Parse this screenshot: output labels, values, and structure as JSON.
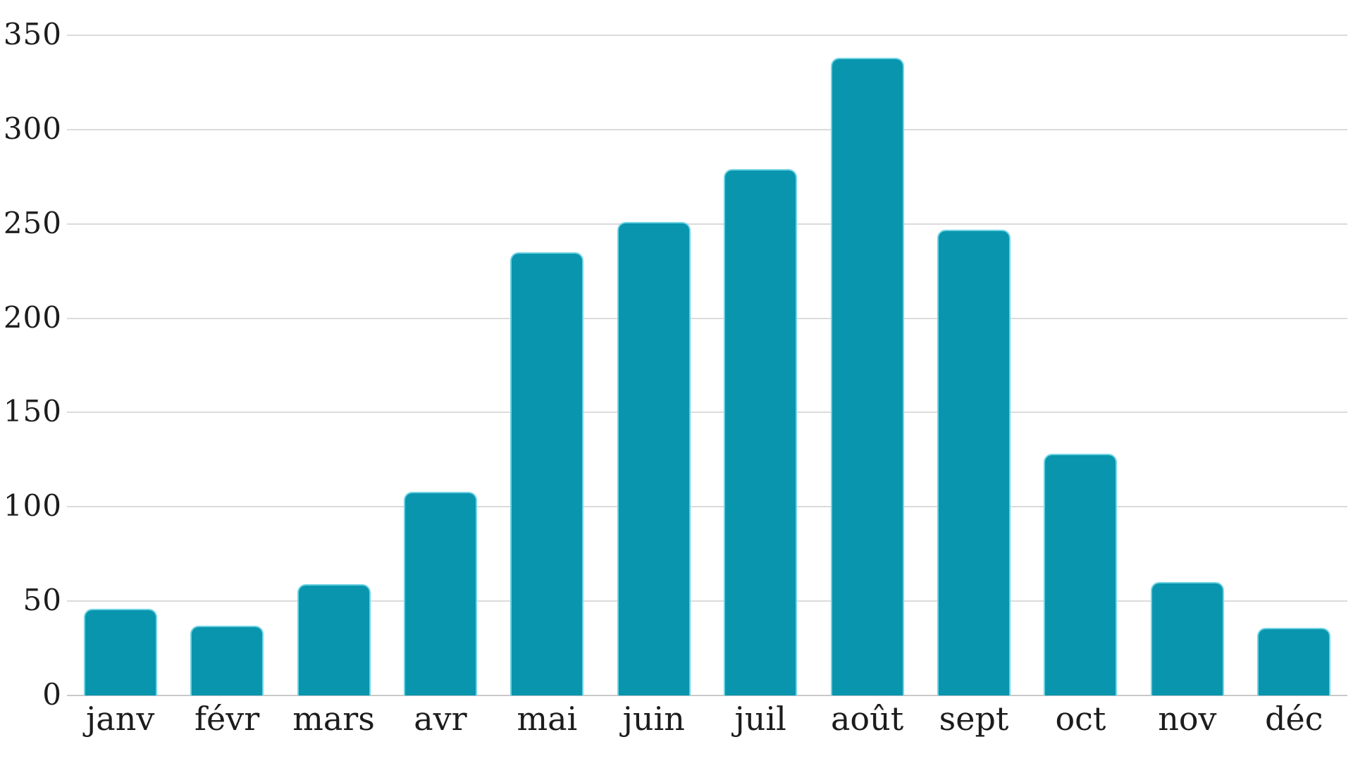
{
  "chart_data": {
    "type": "bar",
    "title": "",
    "xlabel": "",
    "ylabel": "",
    "categories": [
      "janv",
      "févr",
      "mars",
      "avr",
      "mai",
      "juin",
      "juil",
      "août",
      "sept",
      "oct",
      "nov",
      "déc"
    ],
    "values": [
      46,
      37,
      59,
      108,
      235,
      251,
      279,
      338,
      247,
      128,
      60,
      36
    ],
    "ylim": [
      0,
      350
    ],
    "yticks": [
      0,
      50,
      100,
      150,
      200,
      250,
      300,
      350
    ],
    "grid": true,
    "legend": "none",
    "colors": {
      "bar": "#0995ad",
      "bar_edge": "#6fd4e4",
      "gridline": "#dbdbdb",
      "baseline": "#c9c9c9",
      "text": "#1c1c1c",
      "background": "#ffffff"
    }
  }
}
